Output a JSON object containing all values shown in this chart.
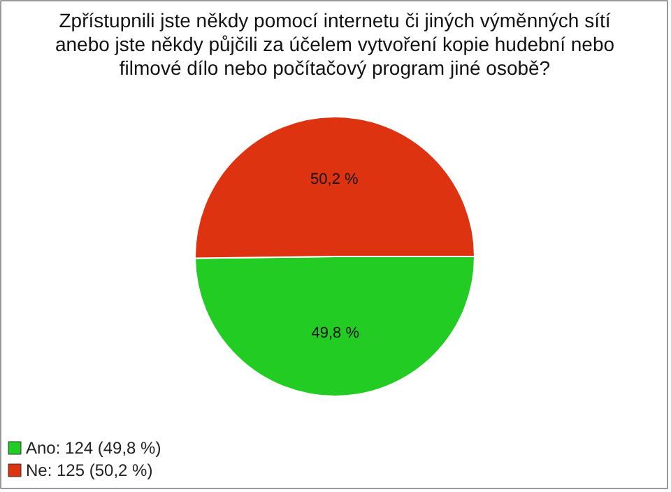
{
  "chart_data": {
    "type": "pie",
    "title": "Zpřístupnili jste někdy pomocí internetu či jiných výměnných sítí anebo jste někdy půjčili za účelem vytvoření kopie hudební nebo filmové dílo nebo počítačový program jiné osobě?",
    "categories": [
      "Ano: 124 (49,8 %)",
      "Ne: 125 (50,2 %)"
    ],
    "values": [
      49.8,
      50.2
    ],
    "value_labels": [
      "49,8 %",
      "50,2 %"
    ],
    "colors": [
      "#22cc22",
      "#dd3311"
    ],
    "legend": "bottom left"
  }
}
